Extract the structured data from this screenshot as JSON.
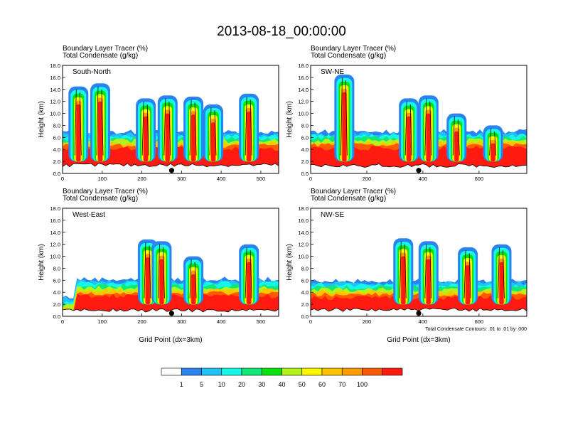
{
  "title": "2013-08-18_00:00:00",
  "chart_data": {
    "type": "heatmap",
    "colorbar": {
      "labels": [
        "1",
        "5",
        "10",
        "20",
        "30",
        "40",
        "50",
        "60",
        "70",
        "100"
      ],
      "colors": [
        "#ffffff",
        "#2b83f0",
        "#1ec3f7",
        "#16f8e6",
        "#12e878",
        "#0ae30a",
        "#b3f21a",
        "#fff600",
        "#ffc400",
        "#ff9c00",
        "#ff5a00",
        "#ff1a12"
      ]
    },
    "panels": [
      {
        "name": "South-North",
        "title_lines": [
          "Boundary Layer Tracer   (%)",
          "Total Condensate   (g/kg)"
        ],
        "xlim": [
          0,
          545
        ],
        "xticks": [
          "0",
          "100",
          "200",
          "300",
          "400",
          "500"
        ],
        "xtick_values": [
          0,
          100,
          200,
          300,
          400,
          500
        ],
        "ylim": [
          0,
          18
        ],
        "yticks": [
          "0.0",
          "2.0",
          "4.0",
          "6.0",
          "8.0",
          "10.0",
          "12.0",
          "14.0",
          "16.0",
          "18.0"
        ],
        "ylabel": "Height (km)",
        "xlabel": "",
        "marker_x": 275,
        "ground_km": 1.1,
        "cloud_top_km": 6.2,
        "storms": [
          [
            40,
            14.5
          ],
          [
            95,
            15.0
          ],
          [
            210,
            12.5
          ],
          [
            265,
            13.0
          ],
          [
            330,
            12.8
          ],
          [
            380,
            11.5
          ],
          [
            470,
            13.3
          ]
        ]
      },
      {
        "name": "SW-NE",
        "title_lines": [
          "Boundary Layer Tracer   (%)",
          "Total Condensate   (g/kg)"
        ],
        "xlim": [
          0,
          770
        ],
        "xticks": [
          "0",
          "200",
          "400",
          "600"
        ],
        "xtick_values": [
          0,
          200,
          400,
          600
        ],
        "ylim": [
          0,
          18
        ],
        "yticks": [
          "0.0",
          "2.0",
          "4.0",
          "6.0",
          "8.0",
          "10.0",
          "12.0",
          "14.0",
          "16.0",
          "18.0"
        ],
        "ylabel": "Height (km)",
        "xlabel": "",
        "marker_x": 385,
        "ground_km": 1.0,
        "cloud_top_km": 6.3,
        "storms": [
          [
            120,
            16.5
          ],
          [
            350,
            12.5
          ],
          [
            420,
            13.0
          ],
          [
            520,
            10.0
          ],
          [
            650,
            8.0
          ]
        ]
      },
      {
        "name": "West-East",
        "title_lines": [
          "Boundary Layer Tracer   (%)",
          "Total Condensate   (g/kg)"
        ],
        "xlim": [
          0,
          545
        ],
        "xticks": [
          "0",
          "100",
          "200",
          "300",
          "400",
          "500"
        ],
        "xtick_values": [
          0,
          100,
          200,
          300,
          400,
          500
        ],
        "ylim": [
          0,
          18
        ],
        "yticks": [
          "0.0",
          "2.0",
          "4.0",
          "6.0",
          "8.0",
          "10.0",
          "12.0",
          "14.0",
          "16.0",
          "18.0"
        ],
        "ylabel": "Height (km)",
        "xlabel": "Grid Point (dx=3km)",
        "marker_x": 275,
        "ground_km": 0.7,
        "cloud_top_km": 5.5,
        "storms": [
          [
            215,
            12.8
          ],
          [
            250,
            12.5
          ],
          [
            330,
            10.0
          ],
          [
            470,
            12.0
          ]
        ]
      },
      {
        "name": "NW-SE",
        "title_lines": [
          "Boundary Layer Tracer   (%)",
          "Total Condensate   (g/kg)"
        ],
        "xlim": [
          0,
          770
        ],
        "xticks": [
          "0",
          "200",
          "400",
          "600"
        ],
        "xtick_values": [
          0,
          200,
          400,
          600
        ],
        "ylim": [
          0,
          18
        ],
        "yticks": [
          "0.0",
          "2.0",
          "4.0",
          "6.0",
          "8.0",
          "10.0",
          "12.0",
          "14.0",
          "16.0",
          "18.0"
        ],
        "ylabel": "Height (km)",
        "xlabel": "Grid Point (dx=3km)",
        "note": "Total Condensate Contours: .01 to .01 by .000",
        "marker_x": 385,
        "ground_km": 0.8,
        "cloud_top_km": 5.2,
        "storms": [
          [
            330,
            13.0
          ],
          [
            420,
            12.5
          ],
          [
            560,
            11.5
          ],
          [
            680,
            12.0
          ]
        ]
      }
    ]
  }
}
